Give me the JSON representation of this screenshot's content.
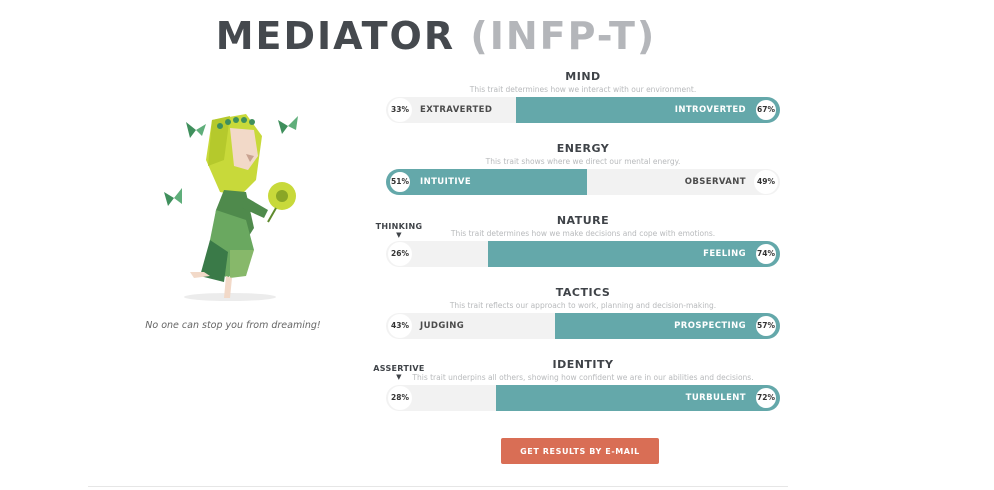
{
  "title": {
    "type": "MEDIATOR",
    "code": "(INFP-T)"
  },
  "tagline": "No one can stop you from dreaming!",
  "traits": [
    {
      "name": "MIND",
      "description": "This trait determines how we interact with our environment.",
      "left_label": "EXTRAVERTED",
      "right_label": "INTROVERTED",
      "left_pct": "33%",
      "right_pct": "67%",
      "dominant": "right",
      "dominant_fraction": 0.67
    },
    {
      "name": "ENERGY",
      "description": "This trait shows where we direct our mental energy.",
      "left_label": "INTUITIVE",
      "right_label": "OBSERVANT",
      "left_pct": "51%",
      "right_pct": "49%",
      "dominant": "left",
      "dominant_fraction": 0.51
    },
    {
      "name": "NATURE",
      "description": "This trait determines how we make decisions and cope with emotions.",
      "left_label": "",
      "right_label": "FEELING",
      "left_pct": "26%",
      "right_pct": "74%",
      "dominant": "right",
      "dominant_fraction": 0.74,
      "marker": "THINKING"
    },
    {
      "name": "TACTICS",
      "description": "This trait reflects our approach to work, planning and decision-making.",
      "left_label": "JUDGING",
      "right_label": "PROSPECTING",
      "left_pct": "43%",
      "right_pct": "57%",
      "dominant": "right",
      "dominant_fraction": 0.57
    },
    {
      "name": "IDENTITY",
      "description": "This trait underpins all others, showing how confident we are in our abilities and decisions.",
      "left_label": "",
      "right_label": "TURBULENT",
      "left_pct": "28%",
      "right_pct": "72%",
      "dominant": "right",
      "dominant_fraction": 0.72,
      "marker": "ASSERTIVE"
    }
  ],
  "email_button": "GET RESULTS BY E-MAIL",
  "colors": {
    "accent": "#64a8aa",
    "button": "#d96e55",
    "bar_bg": "#f2f2f2"
  }
}
